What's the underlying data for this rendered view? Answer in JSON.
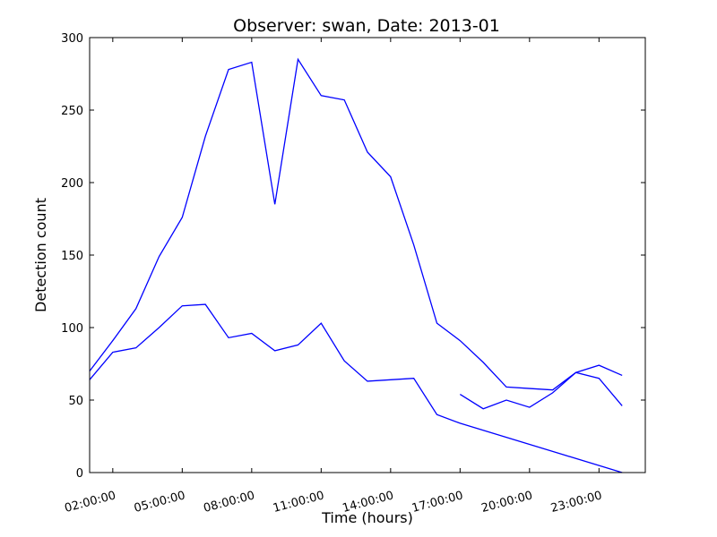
{
  "chart_data": {
    "type": "line",
    "title": "Observer: swan, Date: 2013-01",
    "xlabel": "Time (hours)",
    "ylabel": "Detection count",
    "xlim": [
      1.0,
      25.0
    ],
    "ylim": [
      0,
      300
    ],
    "xticks": [
      {
        "value": 2,
        "label": "02:00:00"
      },
      {
        "value": 5,
        "label": "05:00:00"
      },
      {
        "value": 8,
        "label": "08:00:00"
      },
      {
        "value": 11,
        "label": "11:00:00"
      },
      {
        "value": 14,
        "label": "14:00:00"
      },
      {
        "value": 17,
        "label": "17:00:00"
      },
      {
        "value": 20,
        "label": "20:00:00"
      },
      {
        "value": 23,
        "label": "23:00:00"
      }
    ],
    "yticks": [
      0,
      50,
      100,
      150,
      200,
      250,
      300
    ],
    "grid": false,
    "line_color": "#0000ff",
    "series": [
      {
        "x": [
          1,
          2,
          3,
          4,
          5,
          6,
          7,
          8,
          9,
          10,
          11,
          12,
          13,
          14,
          15,
          16,
          17,
          18,
          19,
          20,
          21,
          22,
          23,
          24
        ],
        "values": [
          70,
          91,
          113,
          149,
          176,
          232,
          278,
          283,
          185,
          285,
          260,
          257,
          221,
          204,
          157,
          103,
          91,
          76,
          59,
          58,
          57,
          69,
          74,
          67
        ]
      },
      {
        "x": [
          1,
          2,
          3,
          4,
          5,
          6,
          7,
          8,
          9,
          10,
          11,
          12,
          13,
          14,
          15,
          16,
          17,
          24
        ],
        "values": [
          64,
          83,
          86,
          100,
          115,
          116,
          93,
          96,
          84,
          88,
          103,
          77,
          63,
          64,
          65,
          40,
          34,
          0
        ]
      },
      {
        "x": [
          17,
          18,
          19,
          20,
          21,
          22,
          23,
          24
        ],
        "values": [
          54,
          44,
          50,
          45,
          55,
          69,
          65,
          46
        ]
      }
    ]
  }
}
